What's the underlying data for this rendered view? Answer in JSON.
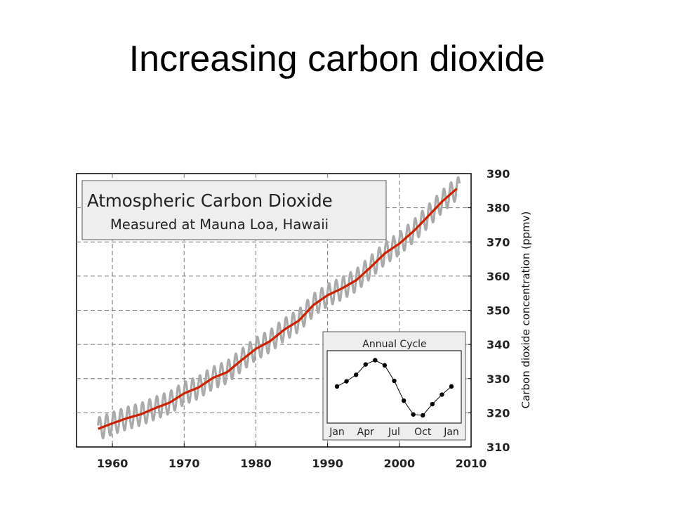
{
  "slide": {
    "title": "Increasing carbon dioxide"
  },
  "chart_data": [
    {
      "type": "line",
      "title": "Atmospheric Carbon Dioxide",
      "subtitle": "Measured at Mauna Loa, Hawaii",
      "xlabel": "",
      "ylabel": "Carbon dioxide concentration (ppmv)",
      "xlim": [
        1955,
        2010
      ],
      "ylim": [
        310,
        390
      ],
      "xticks": [
        1960,
        1970,
        1980,
        1990,
        2000,
        2010
      ],
      "yticks": [
        310,
        320,
        330,
        340,
        350,
        360,
        370,
        380,
        390
      ],
      "y_axis_side": "right",
      "grid": true,
      "colors": {
        "trend": "#cc2200",
        "monthly": "#aaaaaa",
        "legend_box": "#eeeeee",
        "grid": "#777777"
      },
      "series": [
        {
          "x": [
            1958,
            1960,
            1962,
            1964,
            1966,
            1968,
            1970,
            1972,
            1974,
            1976,
            1978,
            1980,
            1982,
            1984,
            1986,
            1988,
            1990,
            1992,
            1994,
            1996,
            1998,
            2000,
            2002,
            2004,
            2006,
            2008
          ],
          "values": [
            315.3,
            316.9,
            318.4,
            319.6,
            321.4,
            323.0,
            325.7,
            327.4,
            330.2,
            331.9,
            335.4,
            338.7,
            341.0,
            344.4,
            347.0,
            351.5,
            354.4,
            356.4,
            358.8,
            362.6,
            366.7,
            369.5,
            373.2,
            377.5,
            381.9,
            385.6
          ]
        }
      ],
      "seasonal_amplitude_ppmv": 3.3
    },
    {
      "type": "line",
      "title": "Annual Cycle",
      "categories": [
        "Jan",
        "Apr",
        "Jul",
        "Oct",
        "Jan"
      ],
      "x": [
        1,
        2,
        3,
        4,
        5,
        6,
        7,
        8,
        9,
        10,
        11,
        12,
        13
      ],
      "series": [
        {
          "values": [
            0.05,
            0.65,
            1.4,
            2.6,
            3.1,
            2.5,
            0.7,
            -1.6,
            -3.2,
            -3.3,
            -2.0,
            -0.9,
            0.05
          ]
        }
      ],
      "ylim": [
        -4.2,
        4.2
      ]
    }
  ]
}
